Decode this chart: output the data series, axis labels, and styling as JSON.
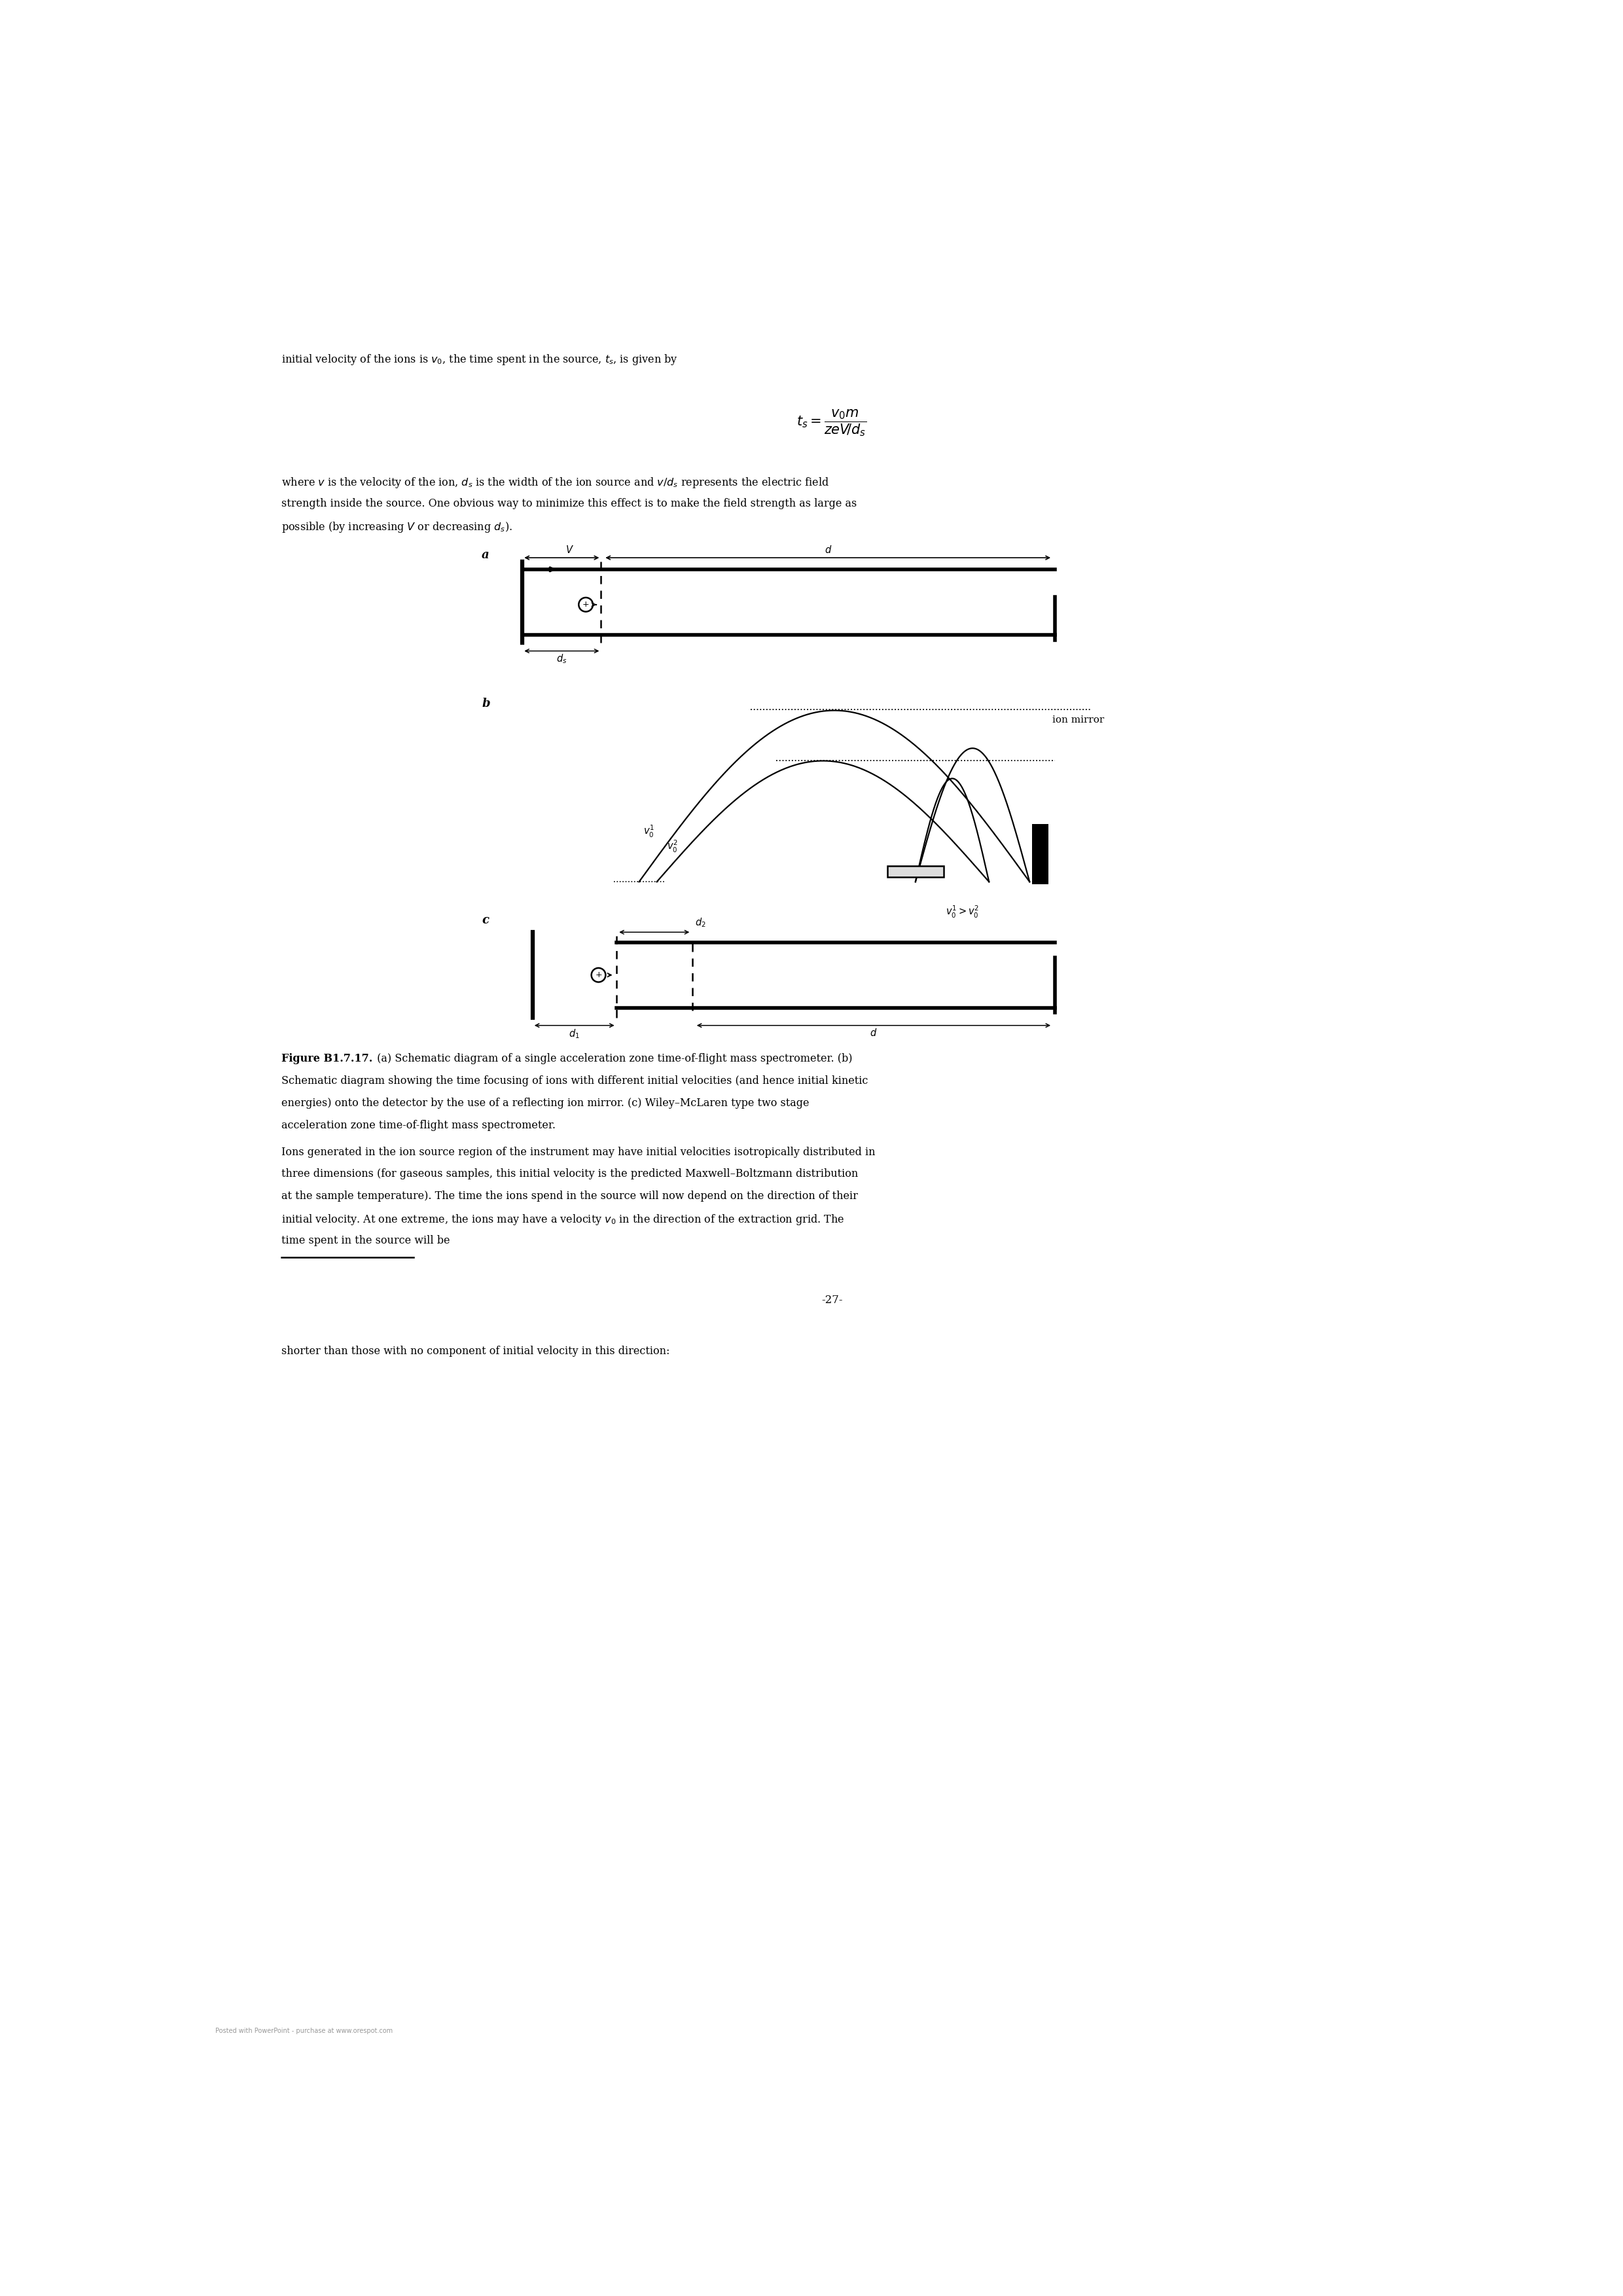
{
  "page_width": 24.8,
  "page_height": 35.08,
  "bg_color": "#ffffff",
  "text_color": "#000000",
  "top_text_line1": "initial velocity of the ions is $v_0$, the time spent in the source, $t_s$, is given by",
  "equation": "$t_s = \\dfrac{v_0 m}{zeV\\!/d_s}$",
  "para1_lines": [
    "where $v$ is the velocity of the ion, $d_s$ is the width of the ion source and $v/d_s$ represents the electric field",
    "strength inside the source. One obvious way to minimize this effect is to make the field strength as large as",
    "possible (by increasing $V$ or decreasing $d_s$)."
  ],
  "caption_bold": "Figure B1.7.17.",
  "caption_rest_lines": [
    " (a) Schematic diagram of a single acceleration zone time-of-flight mass spectrometer. (b)",
    "Schematic diagram showing the time focusing of ions with different initial velocities (and hence initial kinetic",
    "energies) onto the detector by the use of a reflecting ion mirror. (c) Wiley–McLaren type two stage",
    "acceleration zone time-of-flight mass spectrometer."
  ],
  "bottom_para_lines": [
    "Ions generated in the ion source region of the instrument may have initial velocities isotropically distributed in",
    "three dimensions (for gaseous samples, this initial velocity is the predicted Maxwell–Boltzmann distribution",
    "at the sample temperature). The time the ions spend in the source will now depend on the direction of their",
    "initial velocity. At one extreme, the ions may have a velocity $v_0$ in the direction of the extraction grid. The",
    "time spent in the source will be"
  ],
  "bottom_text": "shorter than those with no component of initial velocity in this direction:",
  "page_number": "-27-",
  "footer_text": "Posted with PowerPoint - purchase at www.orespot.com"
}
